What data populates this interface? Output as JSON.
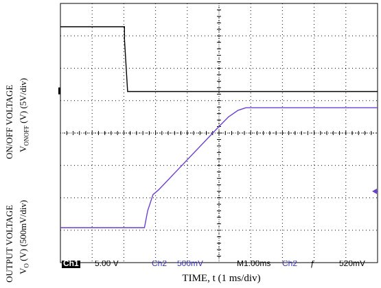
{
  "ylabel_top": {
    "line1": "ON/OFF VOLTAGE",
    "line2_pre": "V",
    "line2_sub": "ONOFF",
    "line2_post": " (V) (5V/div)"
  },
  "ylabel_bottom": {
    "line1": "OUTPUT VOLTAGE",
    "line2_pre": "V",
    "line2_sub": "O",
    "line2_post": " (V) (500mV/div)"
  },
  "xlabel": "TIME, t (1 ms/div)",
  "status": {
    "ch1_tag": "Ch1",
    "ch1_scale": "5.00 V",
    "ch2_label": "Ch2",
    "ch2_scale": "500mV",
    "timebase": "M1.00ms",
    "trig_ch": "Ch2",
    "trig_sign": "ƒ",
    "trig_level": "520mV"
  },
  "colors": {
    "grid": "#000000",
    "ch1": "#000000",
    "ch2": "#6a3fd0",
    "status_ch2": "#3a32b0"
  },
  "chart_data": {
    "type": "line",
    "title": "",
    "xlabel": "TIME, t (1 ms/div)",
    "x_divisions": 10,
    "y_divisions": 8,
    "xlim": [
      0,
      10
    ],
    "xunit": "ms",
    "grid": true,
    "series": [
      {
        "name": "Ch1",
        "unit": "div",
        "points": [
          [
            0,
            7.28
          ],
          [
            2.02,
            7.28
          ],
          [
            2.02,
            6.9
          ],
          [
            2.12,
            5.28
          ],
          [
            10,
            5.28
          ]
        ]
      },
      {
        "name": "Ch2",
        "unit": "div",
        "points": [
          [
            0,
            1.08
          ],
          [
            2.65,
            1.08
          ],
          [
            2.75,
            1.6
          ],
          [
            2.92,
            2.1
          ],
          [
            3.1,
            2.25
          ],
          [
            5.0,
            4.2
          ],
          [
            5.3,
            4.5
          ],
          [
            5.6,
            4.7
          ],
          [
            5.85,
            4.78
          ],
          [
            10,
            4.78
          ]
        ]
      }
    ],
    "markers": [
      {
        "name": "ch1-ground-marker",
        "y": 5.3,
        "side": "left"
      },
      {
        "name": "ch2-level-marker",
        "y": 2.2,
        "side": "right"
      }
    ]
  }
}
